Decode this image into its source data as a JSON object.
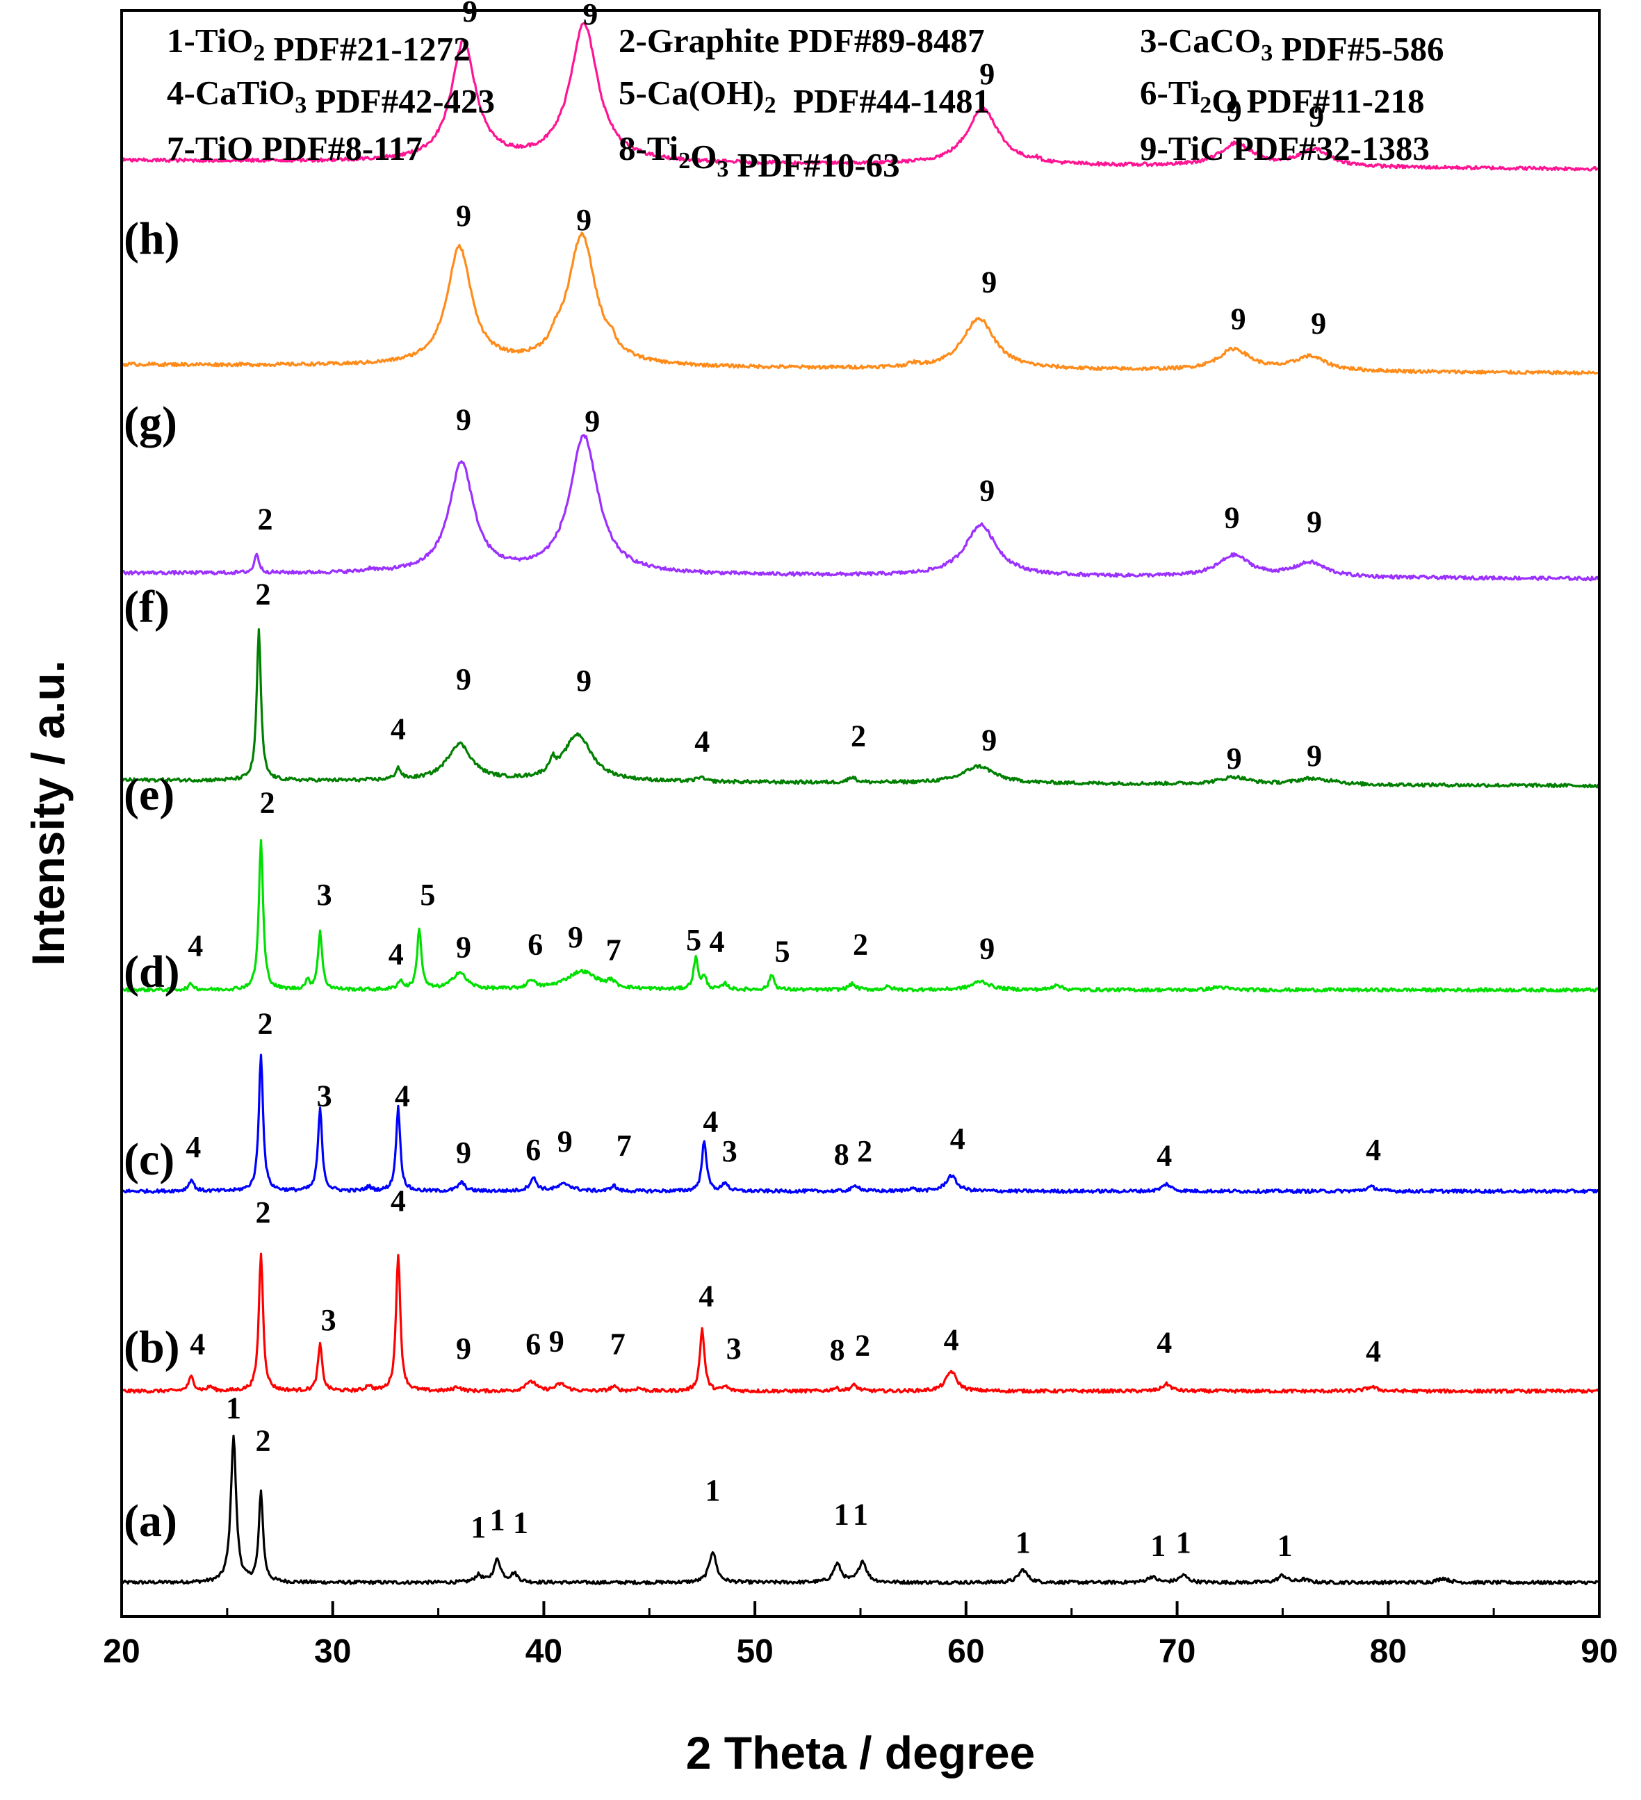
{
  "chart_data": {
    "type": "line",
    "title": "",
    "xlabel": "2 Theta / degree",
    "ylabel": "Intensity / a.u.",
    "xlim": [
      20,
      90
    ],
    "ylim": [
      0,
      1
    ],
    "y_ticks_shown": false,
    "x_ticks": [
      "20",
      "30",
      "40",
      "50",
      "60",
      "70",
      "80",
      "90"
    ],
    "x_tick_values": [
      20,
      30,
      40,
      50,
      60,
      70,
      80,
      90
    ],
    "grid": false,
    "legend": {
      "placement": "top",
      "entries": [
        {
          "id": "1",
          "pre": "1-TiO",
          "sub": "2",
          "post": " PDF#21-1272"
        },
        {
          "id": "2",
          "pre": "2-Graphite PDF#89-8487",
          "sub": "",
          "post": ""
        },
        {
          "id": "3",
          "pre": "3-CaCO",
          "sub": "3",
          "post": " PDF#5-586"
        },
        {
          "id": "4",
          "pre": "4-CaTiO",
          "sub": "3",
          "post": " PDF#42-423"
        },
        {
          "id": "5",
          "pre": "5-Ca(OH)",
          "sub": "2",
          "post": "  PDF#44-1481"
        },
        {
          "id": "6",
          "pre": "6-Ti",
          "sub": "2",
          "post": "O PDF#11-218"
        },
        {
          "id": "7",
          "pre": "7-TiO PDF#8-117",
          "sub": "",
          "post": ""
        },
        {
          "id": "8",
          "pre": "8-Ti",
          "sub": "2",
          "post": "O",
          "sub2": "3",
          "post2": " PDF#10-63"
        },
        {
          "id": "9",
          "pre": "9-TiC PDF#32-1383",
          "sub": "",
          "post": ""
        }
      ]
    },
    "series": [
      {
        "name": "(a)",
        "color": "#000000",
        "baseline": 0.023,
        "noise": 0.0012,
        "peaks": [
          [
            25.3,
            0.103,
            0.15
          ],
          [
            26.6,
            0.063,
            0.12
          ],
          [
            36.9,
            0.005,
            0.2
          ],
          [
            37.8,
            0.016,
            0.2
          ],
          [
            38.6,
            0.006,
            0.2
          ],
          [
            48.0,
            0.022,
            0.2
          ],
          [
            53.9,
            0.013,
            0.22
          ],
          [
            55.1,
            0.015,
            0.22
          ],
          [
            62.7,
            0.009,
            0.25
          ],
          [
            68.8,
            0.004,
            0.25
          ],
          [
            70.3,
            0.005,
            0.25
          ],
          [
            75.0,
            0.005,
            0.25
          ],
          [
            76.0,
            0.002,
            0.25
          ],
          [
            82.6,
            0.003,
            0.3
          ]
        ],
        "labels": [
          {
            "t": "1",
            "x": 25.3,
            "y": 0.139
          },
          {
            "t": "2",
            "x": 26.7,
            "y": 0.116
          },
          {
            "t": "1",
            "x": 36.9,
            "y": 0.055
          },
          {
            "t": "1",
            "x": 37.8,
            "y": 0.06
          },
          {
            "t": "1",
            "x": 38.9,
            "y": 0.058
          },
          {
            "t": "1",
            "x": 48.0,
            "y": 0.081
          },
          {
            "t": "1",
            "x": 54.1,
            "y": 0.064
          },
          {
            "t": "1",
            "x": 55.0,
            "y": 0.064
          },
          {
            "t": "1",
            "x": 62.7,
            "y": 0.044
          },
          {
            "t": "1",
            "x": 69.1,
            "y": 0.042
          },
          {
            "t": "1",
            "x": 70.3,
            "y": 0.044
          },
          {
            "t": "1",
            "x": 75.1,
            "y": 0.042
          }
        ]
      },
      {
        "name": "(b)",
        "color": "#ff0000",
        "baseline": 0.158,
        "noise": 0.0012,
        "peaks": [
          [
            23.3,
            0.01,
            0.15
          ],
          [
            24.2,
            0.003,
            0.15
          ],
          [
            26.6,
            0.097,
            0.12
          ],
          [
            29.4,
            0.033,
            0.12
          ],
          [
            31.7,
            0.004,
            0.15
          ],
          [
            33.1,
            0.097,
            0.12
          ],
          [
            35.9,
            0.003,
            0.2
          ],
          [
            39.2,
            0.004,
            0.2
          ],
          [
            39.5,
            0.005,
            0.2
          ],
          [
            40.8,
            0.005,
            0.3
          ],
          [
            43.3,
            0.003,
            0.2
          ],
          [
            44.5,
            0.002,
            0.2
          ],
          [
            47.5,
            0.044,
            0.13
          ],
          [
            48.6,
            0.003,
            0.15
          ],
          [
            53.8,
            0.002,
            0.2
          ],
          [
            54.7,
            0.004,
            0.2
          ],
          [
            59.3,
            0.014,
            0.3
          ],
          [
            69.5,
            0.005,
            0.25
          ],
          [
            79.2,
            0.003,
            0.3
          ]
        ],
        "labels": [
          {
            "t": "4",
            "x": 23.6,
            "y": 0.184
          },
          {
            "t": "2",
            "x": 26.7,
            "y": 0.277
          },
          {
            "t": "3",
            "x": 29.8,
            "y": 0.201
          },
          {
            "t": "4",
            "x": 33.1,
            "y": 0.285
          },
          {
            "t": "9",
            "x": 36.2,
            "y": 0.181
          },
          {
            "t": "6",
            "x": 39.5,
            "y": 0.184
          },
          {
            "t": "9",
            "x": 40.6,
            "y": 0.186
          },
          {
            "t": "7",
            "x": 43.5,
            "y": 0.184
          },
          {
            "t": "4",
            "x": 47.7,
            "y": 0.218
          },
          {
            "t": "3",
            "x": 49.0,
            "y": 0.181
          },
          {
            "t": "8",
            "x": 53.9,
            "y": 0.18
          },
          {
            "t": "2",
            "x": 55.1,
            "y": 0.183
          },
          {
            "t": "4",
            "x": 59.3,
            "y": 0.187
          },
          {
            "t": "4",
            "x": 69.4,
            "y": 0.185
          },
          {
            "t": "4",
            "x": 79.3,
            "y": 0.179
          }
        ]
      },
      {
        "name": "(c)",
        "color": "#0000ff",
        "baseline": 0.299,
        "noise": 0.0012,
        "peaks": [
          [
            23.3,
            0.008,
            0.15
          ],
          [
            26.6,
            0.096,
            0.12
          ],
          [
            29.4,
            0.058,
            0.12
          ],
          [
            31.7,
            0.003,
            0.15
          ],
          [
            33.1,
            0.059,
            0.12
          ],
          [
            36.1,
            0.006,
            0.2
          ],
          [
            39.5,
            0.009,
            0.2
          ],
          [
            41.0,
            0.005,
            0.4
          ],
          [
            43.3,
            0.004,
            0.15
          ],
          [
            47.6,
            0.036,
            0.13
          ],
          [
            48.6,
            0.006,
            0.15
          ],
          [
            54.8,
            0.004,
            0.2
          ],
          [
            57.4,
            0.002,
            0.2
          ],
          [
            59.3,
            0.011,
            0.3
          ],
          [
            69.5,
            0.005,
            0.25
          ],
          [
            79.2,
            0.003,
            0.3
          ]
        ],
        "labels": [
          {
            "t": "4",
            "x": 23.4,
            "y": 0.323
          },
          {
            "t": "2",
            "x": 26.8,
            "y": 0.41
          },
          {
            "t": "3",
            "x": 29.6,
            "y": 0.359
          },
          {
            "t": "4",
            "x": 33.3,
            "y": 0.359
          },
          {
            "t": "9",
            "x": 36.2,
            "y": 0.319
          },
          {
            "t": "6",
            "x": 39.5,
            "y": 0.321
          },
          {
            "t": "9",
            "x": 41.0,
            "y": 0.327
          },
          {
            "t": "7",
            "x": 43.8,
            "y": 0.324
          },
          {
            "t": "4",
            "x": 47.9,
            "y": 0.341
          },
          {
            "t": "3",
            "x": 48.8,
            "y": 0.32
          },
          {
            "t": "8",
            "x": 54.1,
            "y": 0.318
          },
          {
            "t": "2",
            "x": 55.2,
            "y": 0.32
          },
          {
            "t": "4",
            "x": 59.6,
            "y": 0.329
          },
          {
            "t": "4",
            "x": 69.4,
            "y": 0.317
          },
          {
            "t": "4",
            "x": 79.3,
            "y": 0.321
          }
        ]
      },
      {
        "name": "(d)",
        "color": "#00e000",
        "baseline": 0.441,
        "noise": 0.0012,
        "peaks": [
          [
            23.3,
            0.004,
            0.15
          ],
          [
            26.6,
            0.105,
            0.12
          ],
          [
            29.4,
            0.041,
            0.12
          ],
          [
            28.8,
            0.006,
            0.12
          ],
          [
            33.2,
            0.006,
            0.15
          ],
          [
            34.1,
            0.043,
            0.12
          ],
          [
            36.0,
            0.012,
            0.4
          ],
          [
            39.4,
            0.006,
            0.2
          ],
          [
            41.8,
            0.013,
            0.9
          ],
          [
            43.2,
            0.004,
            0.2
          ],
          [
            47.2,
            0.022,
            0.13
          ],
          [
            47.6,
            0.008,
            0.13
          ],
          [
            48.6,
            0.004,
            0.15
          ],
          [
            50.8,
            0.011,
            0.13
          ],
          [
            54.6,
            0.004,
            0.2
          ],
          [
            56.3,
            0.002,
            0.2
          ],
          [
            60.7,
            0.006,
            0.5
          ],
          [
            64.3,
            0.004,
            0.2
          ],
          [
            72.0,
            0.002,
            0.4
          ]
        ],
        "labels": [
          {
            "t": "4",
            "x": 23.5,
            "y": 0.465
          },
          {
            "t": "2",
            "x": 26.9,
            "y": 0.566
          },
          {
            "t": "3",
            "x": 29.6,
            "y": 0.501
          },
          {
            "t": "4",
            "x": 33.0,
            "y": 0.459
          },
          {
            "t": "5",
            "x": 34.5,
            "y": 0.501
          },
          {
            "t": "9",
            "x": 36.2,
            "y": 0.464
          },
          {
            "t": "6",
            "x": 39.6,
            "y": 0.466
          },
          {
            "t": "9",
            "x": 41.5,
            "y": 0.471
          },
          {
            "t": "7",
            "x": 43.3,
            "y": 0.462
          },
          {
            "t": "5",
            "x": 47.1,
            "y": 0.469
          },
          {
            "t": "4",
            "x": 48.2,
            "y": 0.468
          },
          {
            "t": "5",
            "x": 51.3,
            "y": 0.461
          },
          {
            "t": "2",
            "x": 55.0,
            "y": 0.466
          },
          {
            "t": "9",
            "x": 61.0,
            "y": 0.463
          }
        ]
      },
      {
        "name": "(e)",
        "color": "#008000",
        "baseline": 0.585,
        "noise": 0.0012,
        "peaks": [
          [
            26.5,
            0.106,
            0.12
          ],
          [
            33.1,
            0.008,
            0.15
          ],
          [
            36.0,
            0.026,
            0.7
          ],
          [
            40.4,
            0.009,
            0.15
          ],
          [
            41.6,
            0.033,
            0.8
          ],
          [
            47.4,
            0.003,
            0.2
          ],
          [
            54.6,
            0.004,
            0.2
          ],
          [
            60.6,
            0.012,
            0.9
          ],
          [
            72.7,
            0.005,
            0.8
          ],
          [
            76.3,
            0.004,
            0.8
          ],
          [
            77.5,
            0.002,
            0.3
          ]
        ],
        "labels": [
          {
            "t": "2",
            "x": 26.7,
            "y": 0.713
          },
          {
            "t": "4",
            "x": 33.1,
            "y": 0.618
          },
          {
            "t": "9",
            "x": 36.2,
            "y": 0.653
          },
          {
            "t": "9",
            "x": 41.9,
            "y": 0.652
          },
          {
            "t": "4",
            "x": 47.5,
            "y": 0.609
          },
          {
            "t": "2",
            "x": 54.9,
            "y": 0.613
          },
          {
            "t": "9",
            "x": 61.1,
            "y": 0.61
          },
          {
            "t": "9",
            "x": 72.7,
            "y": 0.597
          },
          {
            "t": "9",
            "x": 76.5,
            "y": 0.599
          }
        ]
      },
      {
        "name": "(f)",
        "color": "#9b30ff",
        "baseline": 0.731,
        "noise": 0.0012,
        "peaks": [
          [
            26.4,
            0.014,
            0.12
          ],
          [
            31.8,
            0.002,
            0.2
          ],
          [
            36.1,
            0.078,
            0.7
          ],
          [
            41.9,
            0.097,
            0.8
          ],
          [
            60.7,
            0.036,
            0.9
          ],
          [
            72.7,
            0.015,
            0.9
          ],
          [
            76.3,
            0.01,
            0.9
          ]
        ],
        "labels": [
          {
            "t": "2",
            "x": 26.8,
            "y": 0.766
          },
          {
            "t": "9",
            "x": 36.2,
            "y": 0.836
          },
          {
            "t": "9",
            "x": 42.3,
            "y": 0.835
          },
          {
            "t": "9",
            "x": 61.0,
            "y": 0.786
          },
          {
            "t": "9",
            "x": 72.6,
            "y": 0.767
          },
          {
            "t": "9",
            "x": 76.5,
            "y": 0.764
          }
        ]
      },
      {
        "name": "(g)",
        "color": "#ff8c1a",
        "baseline": 0.876,
        "noise": 0.0012,
        "peaks": [
          [
            36.0,
            0.083,
            0.7
          ],
          [
            40.6,
            0.006,
            0.3
          ],
          [
            41.8,
            0.092,
            0.8
          ],
          [
            43.2,
            0.006,
            0.2
          ],
          [
            57.5,
            0.002,
            0.3
          ],
          [
            60.6,
            0.036,
            0.9
          ],
          [
            72.7,
            0.015,
            0.9
          ],
          [
            76.3,
            0.01,
            0.9
          ]
        ],
        "labels": [
          {
            "t": "9",
            "x": 36.2,
            "y": 0.98
          },
          {
            "t": "9",
            "x": 41.9,
            "y": 0.977
          },
          {
            "t": "9",
            "x": 61.1,
            "y": 0.933
          },
          {
            "t": "9",
            "x": 72.9,
            "y": 0.907
          },
          {
            "t": "9",
            "x": 76.7,
            "y": 0.904
          }
        ]
      },
      {
        "name": "(h)",
        "color": "#ff1493",
        "baseline": 1.02,
        "noise": 0.0012,
        "peaks": [
          [
            36.2,
            0.084,
            0.7
          ],
          [
            41.9,
            0.097,
            0.8
          ],
          [
            60.8,
            0.04,
            0.9
          ],
          [
            72.8,
            0.016,
            0.9
          ],
          [
            76.5,
            0.012,
            0.9
          ],
          [
            63.3,
            0.002,
            0.2
          ]
        ],
        "labels": [
          {
            "t": "9",
            "x": 36.5,
            "y": 1.124
          },
          {
            "t": "9",
            "x": 42.2,
            "y": 1.122
          },
          {
            "t": "9",
            "x": 61.0,
            "y": 1.08
          },
          {
            "t": "9",
            "x": 72.7,
            "y": 1.054
          },
          {
            "t": "9",
            "x": 76.6,
            "y": 1.05
          }
        ]
      }
    ]
  }
}
